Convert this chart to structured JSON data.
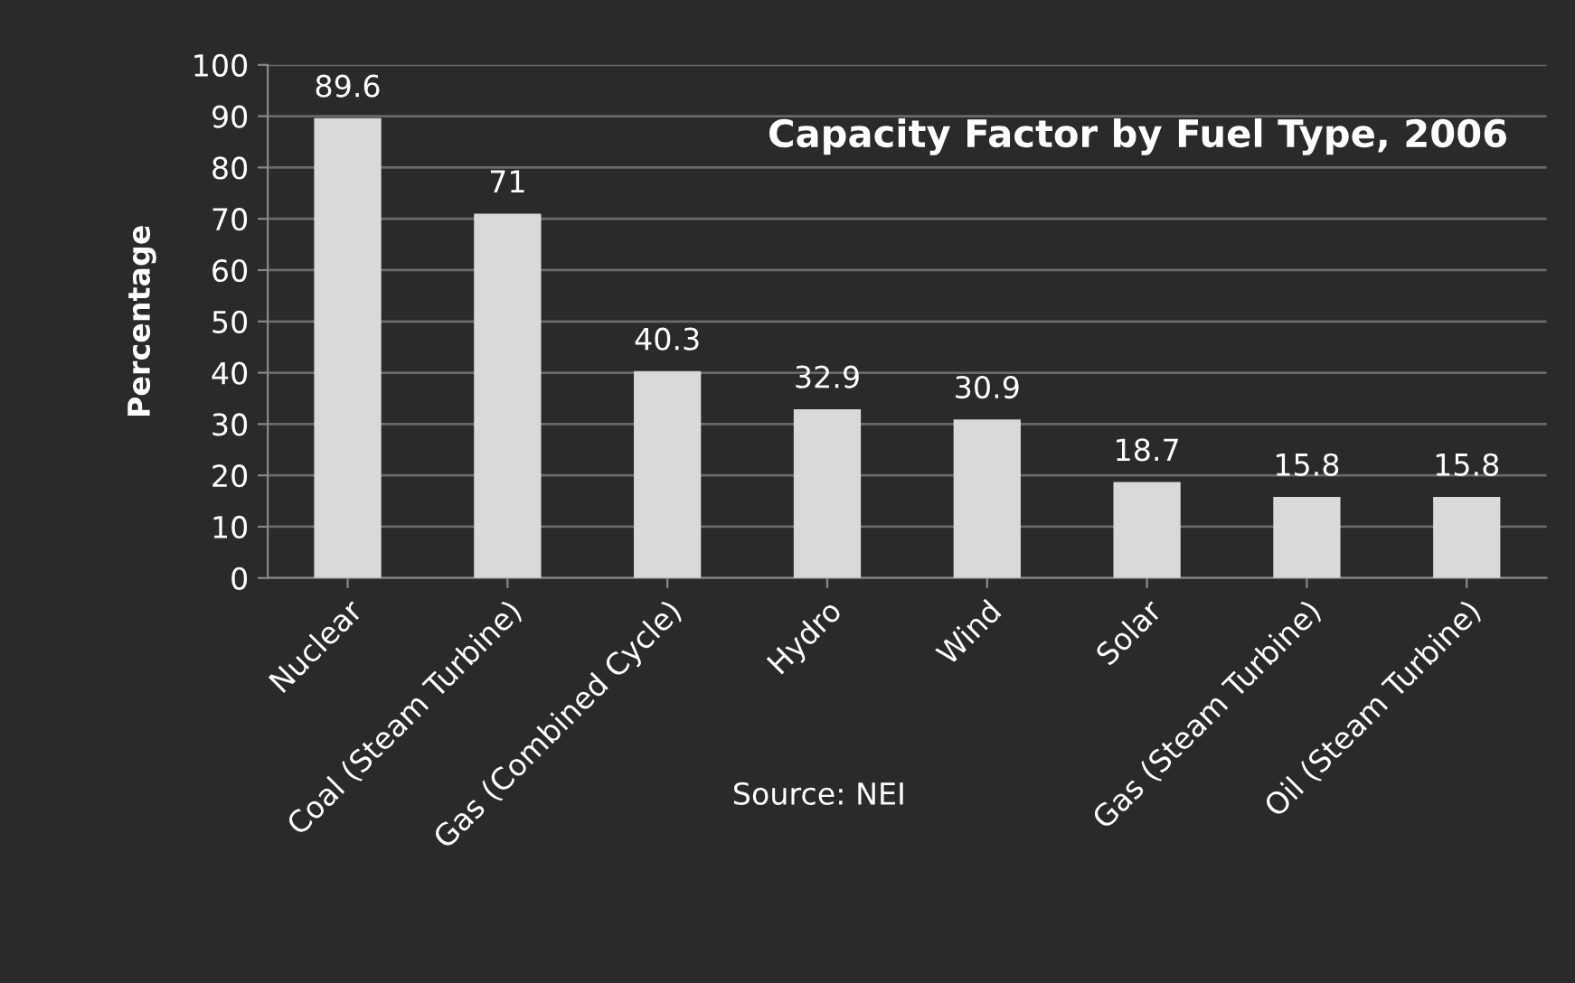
{
  "chart_data": {
    "type": "bar",
    "title": "Capacity Factor by Fuel Type, 2006",
    "ylabel": "Percentage",
    "categories": [
      "Nuclear",
      "Coal (Steam Turbine)",
      "Gas (Combined Cycle)",
      "Hydro",
      "Wind",
      "Solar",
      "Gas (Steam Turbine)",
      "Oil (Steam Turbine)"
    ],
    "values": [
      89.6,
      71,
      40.3,
      32.9,
      30.9,
      18.7,
      15.8,
      15.8
    ],
    "color": "#d9d9d9",
    "ylim": [
      0,
      100
    ],
    "yticks": [
      0,
      10,
      20,
      30,
      40,
      50,
      60,
      70,
      80,
      90,
      100
    ],
    "grid": "y",
    "data_labels": true,
    "annotations": [
      "Source: NEI"
    ]
  }
}
